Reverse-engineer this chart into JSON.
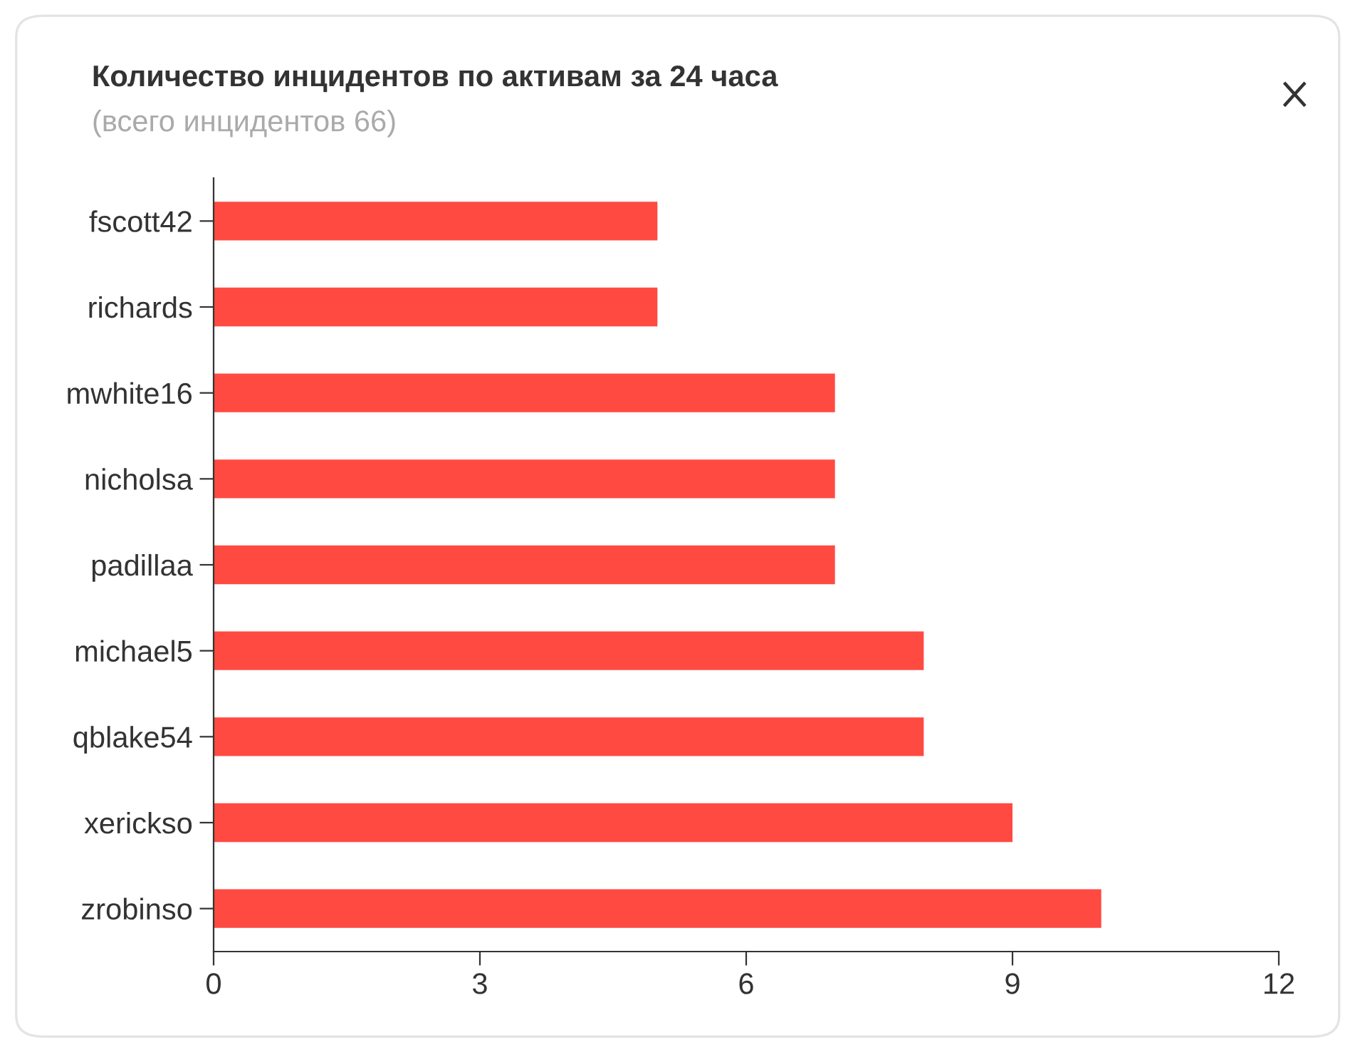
{
  "chart_data": {
    "type": "bar",
    "orientation": "horizontal",
    "title": "Количество инцидентов по активам за 24 часа",
    "subtitle": "(всего инцидентов 66)",
    "categories": [
      "fscott42",
      "richards",
      "mwhite16",
      "nicholsa",
      "padillaa",
      "michael5",
      "qblake54",
      "xerickso",
      "zrobinso"
    ],
    "values": [
      5,
      5,
      7,
      7,
      7,
      8,
      8,
      9,
      10
    ],
    "color": "#ff4a42",
    "xlim": [
      0,
      12
    ],
    "xticks": [
      0,
      3,
      6,
      9,
      12
    ]
  }
}
